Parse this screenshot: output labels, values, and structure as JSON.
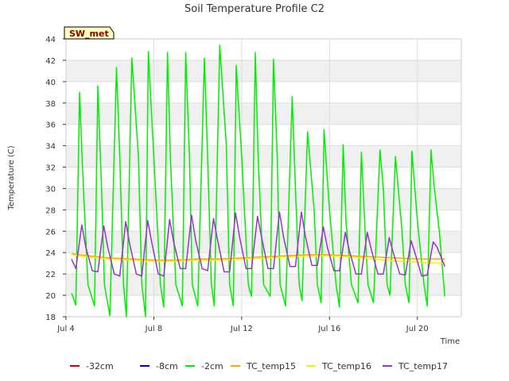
{
  "chart_data": {
    "type": "line",
    "title": "Soil Temperature Profile C2",
    "xlabel": "Time",
    "ylabel": "Temperature (C)",
    "badge": "SW_met",
    "xlim": [
      4.0,
      22.0
    ],
    "ylim": [
      18,
      44
    ],
    "x_ticks": [
      {
        "value": 4,
        "label": "Jul 4"
      },
      {
        "value": 8,
        "label": "Jul 8"
      },
      {
        "value": 12,
        "label": "Jul 12"
      },
      {
        "value": 16,
        "label": "Jul 16"
      },
      {
        "value": 20,
        "label": "Jul 20"
      }
    ],
    "y_ticks": [
      18,
      20,
      22,
      24,
      26,
      28,
      30,
      32,
      34,
      36,
      38,
      40,
      42,
      44
    ],
    "grid": true,
    "legend_position": "bottom",
    "series": [
      {
        "name": "-32cm",
        "color": "#cc0000",
        "x": [],
        "y": []
      },
      {
        "name": "-8cm",
        "color": "#0000cc",
        "x": [],
        "y": []
      },
      {
        "name": "-2cm",
        "color": "#00ee00",
        "x": [
          4.25,
          4.45,
          4.62,
          4.75,
          5.0,
          5.3,
          5.45,
          5.62,
          5.75,
          6.0,
          6.3,
          6.45,
          6.62,
          6.75,
          7.0,
          7.3,
          7.45,
          7.62,
          7.75,
          8.0,
          8.3,
          8.45,
          8.62,
          8.75,
          9.0,
          9.3,
          9.45,
          9.62,
          9.75,
          10.0,
          10.3,
          10.45,
          10.62,
          10.75,
          11.0,
          11.3,
          11.45,
          11.62,
          11.75,
          12.0,
          12.3,
          12.45,
          12.62,
          12.75,
          13.0,
          13.3,
          13.45,
          13.62,
          13.75,
          14.0,
          14.3,
          14.45,
          14.62,
          14.75,
          15.0,
          15.3,
          15.45,
          15.62,
          15.75,
          16.0,
          16.3,
          16.45,
          16.62,
          16.75,
          17.0,
          17.3,
          17.45,
          17.62,
          17.75,
          18.0,
          18.3,
          18.45,
          18.62,
          18.75,
          19.0,
          19.3,
          19.45,
          19.62,
          19.75,
          20.0,
          20.3,
          20.45,
          20.62,
          20.75,
          21.0,
          21.25
        ],
        "y": [
          20.2,
          19.1,
          39.0,
          32.0,
          21.0,
          19.0,
          39.6,
          30.0,
          21.0,
          18.1,
          41.3,
          33.0,
          21.0,
          18.0,
          42.2,
          33.0,
          21.0,
          18.0,
          42.8,
          33.0,
          21.0,
          18.9,
          42.7,
          33.0,
          21.0,
          19.0,
          42.7,
          33.0,
          21.0,
          19.0,
          42.2,
          33.0,
          21.0,
          19.0,
          43.4,
          34.0,
          21.0,
          19.0,
          41.5,
          33.0,
          21.0,
          19.9,
          42.7,
          33.0,
          21.0,
          19.9,
          42.1,
          33.0,
          21.0,
          19.0,
          38.6,
          30.0,
          21.0,
          19.5,
          35.3,
          28.0,
          21.0,
          19.3,
          35.5,
          28.0,
          21.0,
          18.9,
          34.1,
          27.0,
          21.0,
          19.3,
          33.4,
          26.0,
          21.0,
          19.3,
          33.6,
          30.0,
          21.0,
          20.0,
          33.0,
          26.0,
          21.0,
          19.3,
          33.5,
          27.0,
          21.0,
          19.0,
          33.6,
          30.5,
          26.0,
          19.9
        ]
      },
      {
        "name": "TC_temp15",
        "color": "#ffa500",
        "x": [
          4.25,
          5.0,
          6.0,
          7.0,
          8.0,
          9.0,
          10.0,
          11.0,
          12.0,
          13.0,
          14.0,
          15.0,
          16.0,
          17.0,
          18.0,
          19.0,
          20.0,
          21.0,
          21.25
        ],
        "y": [
          23.9,
          23.7,
          23.5,
          23.4,
          23.3,
          23.3,
          23.4,
          23.4,
          23.5,
          23.6,
          23.7,
          23.8,
          23.8,
          23.7,
          23.6,
          23.5,
          23.4,
          23.4,
          23.4
        ]
      },
      {
        "name": "TC_temp16",
        "color": "#ffee00",
        "x": [
          4.25,
          5.0,
          6.0,
          7.0,
          8.0,
          9.0,
          10.0,
          11.0,
          12.0,
          13.0,
          14.0,
          15.0,
          16.0,
          17.0,
          18.0,
          19.0,
          20.0,
          21.0,
          21.25
        ],
        "y": [
          23.8,
          23.6,
          23.4,
          23.3,
          23.2,
          23.2,
          23.3,
          23.3,
          23.4,
          23.5,
          23.6,
          23.7,
          23.7,
          23.6,
          23.4,
          23.2,
          23.1,
          23.0,
          23.0
        ]
      },
      {
        "name": "TC_temp17",
        "color": "#9933cc",
        "x": [
          4.25,
          4.45,
          4.72,
          4.9,
          5.2,
          5.45,
          5.72,
          5.9,
          6.2,
          6.45,
          6.72,
          6.9,
          7.2,
          7.45,
          7.72,
          7.9,
          8.2,
          8.45,
          8.72,
          8.9,
          9.2,
          9.45,
          9.72,
          9.9,
          10.2,
          10.45,
          10.72,
          10.9,
          11.2,
          11.45,
          11.72,
          11.9,
          12.2,
          12.45,
          12.72,
          12.9,
          13.2,
          13.45,
          13.72,
          13.9,
          14.2,
          14.45,
          14.72,
          14.9,
          15.2,
          15.45,
          15.72,
          15.9,
          16.2,
          16.45,
          16.72,
          16.9,
          17.2,
          17.45,
          17.72,
          17.9,
          18.2,
          18.45,
          18.72,
          18.9,
          19.2,
          19.45,
          19.72,
          19.9,
          20.2,
          20.45,
          20.72,
          20.9,
          21.25
        ],
        "y": [
          23.4,
          22.5,
          26.6,
          24.5,
          22.3,
          22.2,
          26.5,
          24.5,
          22.0,
          21.8,
          26.9,
          24.8,
          22.0,
          21.8,
          27.0,
          25.0,
          22.0,
          21.8,
          27.1,
          25.0,
          22.5,
          22.5,
          27.5,
          25.2,
          22.5,
          22.3,
          27.2,
          25.2,
          22.2,
          22.2,
          27.7,
          25.5,
          22.5,
          22.5,
          27.4,
          25.5,
          22.5,
          22.5,
          27.8,
          25.5,
          22.7,
          22.7,
          27.8,
          25.5,
          22.8,
          22.8,
          26.4,
          24.5,
          22.3,
          22.3,
          25.9,
          24.2,
          22.0,
          22.0,
          25.9,
          24.3,
          22.0,
          22.0,
          25.4,
          24.0,
          22.0,
          21.9,
          25.1,
          23.9,
          21.8,
          21.9,
          25.0,
          24.5,
          22.7
        ]
      }
    ]
  }
}
